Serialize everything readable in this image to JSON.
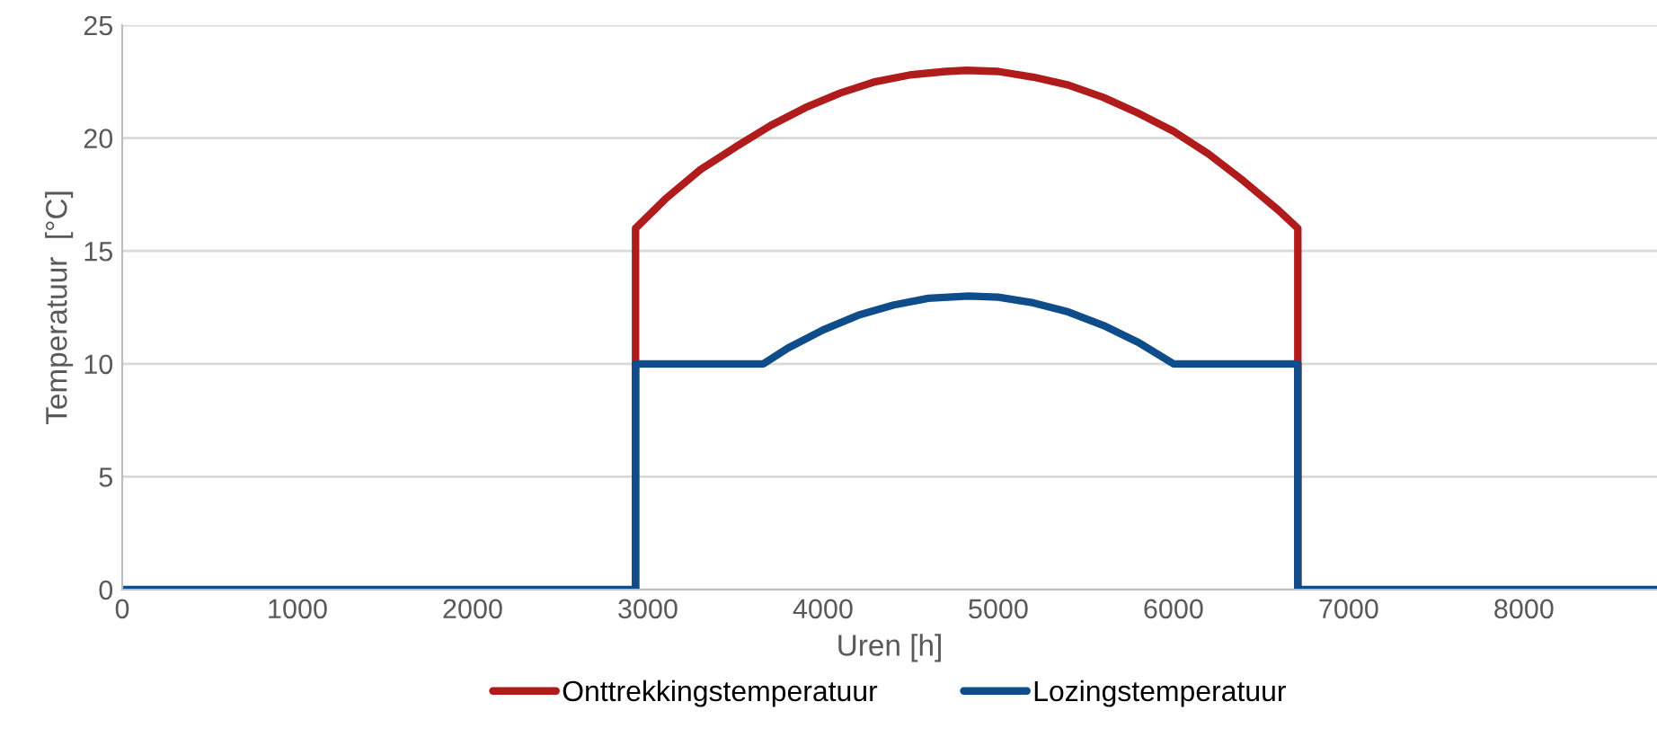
{
  "chart_data": {
    "type": "line",
    "xlabel": "Uren [h]",
    "ylabel": "Temperatuur  [°C]",
    "xlim": [
      0,
      8760
    ],
    "ylim": [
      0,
      25
    ],
    "xticks": [
      0,
      1000,
      2000,
      3000,
      4000,
      5000,
      6000,
      7000,
      8000
    ],
    "yticks": [
      0,
      5,
      10,
      15,
      20,
      25
    ],
    "grid": "y",
    "legend": "bottom",
    "marker": "none",
    "line_style": "solid",
    "series": [
      {
        "name": "Onttrekkingstemperatuur",
        "color": "#b01c1c",
        "x": [
          2930,
          2930,
          3100,
          3300,
          3500,
          3700,
          3900,
          4100,
          4300,
          4500,
          4700,
          4820,
          5000,
          5200,
          5400,
          5600,
          5800,
          6000,
          6200,
          6400,
          6600,
          6710,
          6710
        ],
        "values": [
          0,
          16,
          17.3,
          18.6,
          19.6,
          20.55,
          21.35,
          22.0,
          22.5,
          22.8,
          22.95,
          23,
          22.95,
          22.7,
          22.35,
          21.8,
          21.1,
          20.3,
          19.3,
          18.1,
          16.8,
          16,
          0
        ]
      },
      {
        "name": "Lozingstemperatuur",
        "color": "#0f4c8a",
        "x": [
          0,
          2930,
          2930,
          3660,
          3800,
          4000,
          4200,
          4400,
          4600,
          4830,
          5000,
          5200,
          5400,
          5600,
          5800,
          6000,
          6710,
          6710,
          8760
        ],
        "values": [
          0,
          0,
          10,
          10,
          10.7,
          11.5,
          12.15,
          12.6,
          12.9,
          13,
          12.95,
          12.7,
          12.3,
          11.7,
          10.95,
          10,
          10,
          0,
          0
        ]
      }
    ]
  }
}
